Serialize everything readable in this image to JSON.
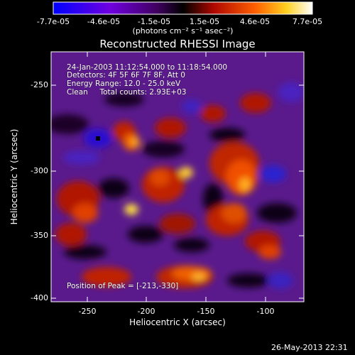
{
  "colorbar": {
    "tick_labels": [
      "-7.7e-05",
      "-4.6e-05",
      "-1.5e-05",
      "1.5e-05",
      "4.6e-05",
      "7.7e-05"
    ],
    "units_label": "(photons cm⁻² s⁻¹ asec⁻²)",
    "colors": [
      "#0000ff",
      "#8a00d8",
      "#000000",
      "#c01000",
      "#ff7000",
      "#ffee30",
      "#ffffff"
    ]
  },
  "plot": {
    "title": "Reconstructed RHESSI Image",
    "xlabel": "Heliocentric X (arcsec)",
    "ylabel": "Heliocentric Y (arcsec)",
    "x_ticks": [
      "-250",
      "-200",
      "-150",
      "-100"
    ],
    "y_ticks": [
      "-250",
      "-300",
      "-350",
      "-400"
    ],
    "info_lines": [
      "24-Jan-2003 11:12:54.000 to 11:18:54.000",
      "Detectors: 4F 5F 6F 7F 8F, Att 0",
      "Energy Range: 12.0 - 25.0 keV",
      "Clean     Total counts: 2.93E+03"
    ],
    "peak_text": "Position of Peak = [-213,-330]"
  },
  "footer": {
    "date": "26-May-2013 22:31"
  }
}
